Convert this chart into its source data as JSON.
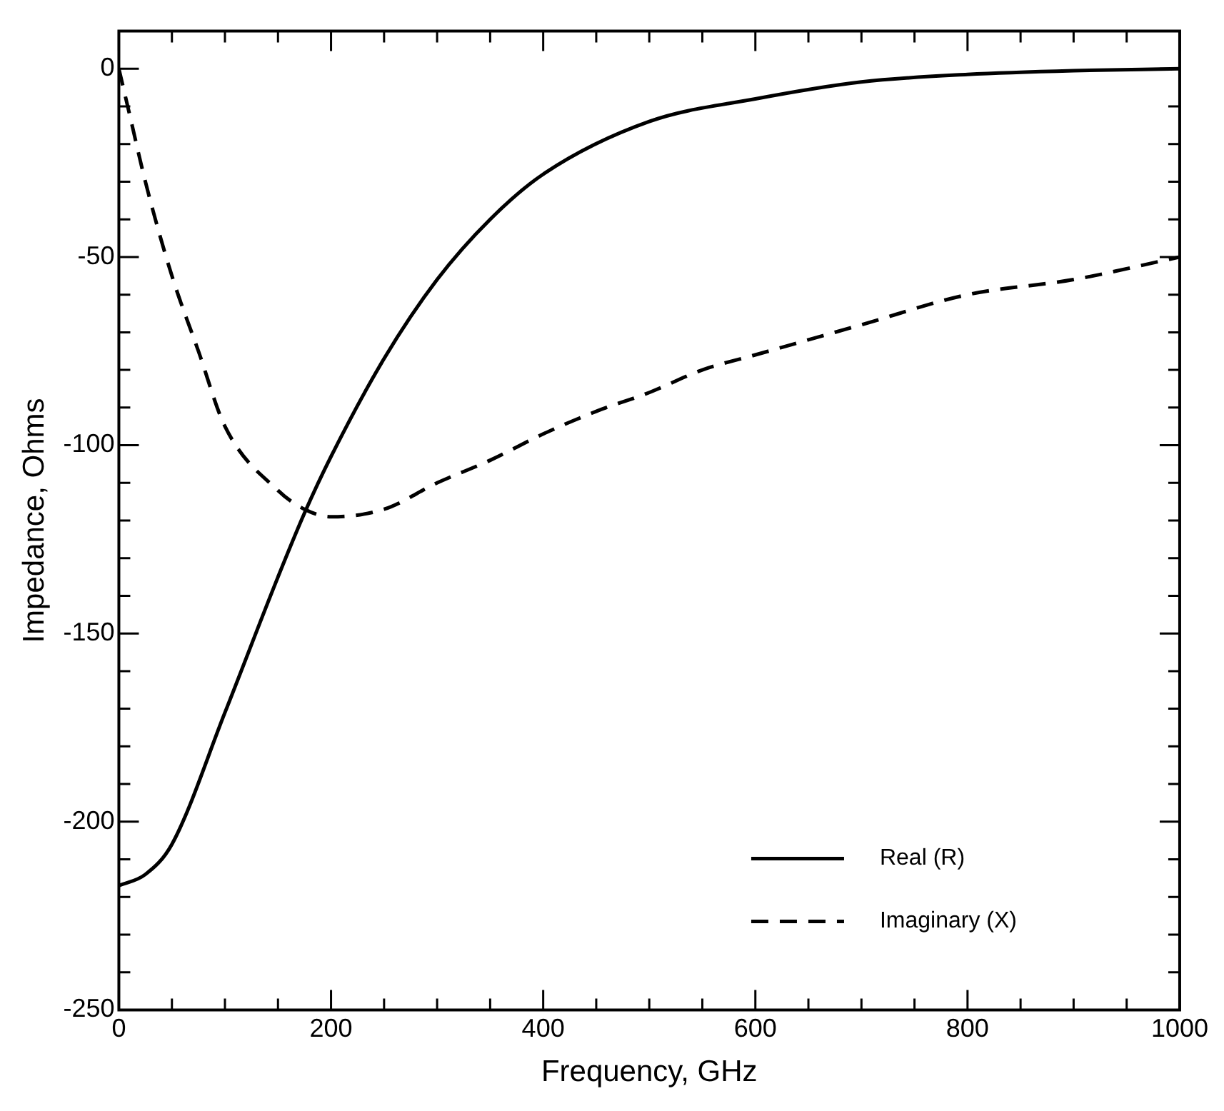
{
  "chart_data": {
    "type": "line",
    "xlabel": "Frequency, GHz",
    "ylabel": "Impedance, Ohms",
    "legend": "bottom right",
    "grid": false,
    "marker": "none",
    "xlim": [
      0,
      1000
    ],
    "ylim": [
      -250,
      10
    ],
    "xticks": [
      0,
      {
        "value": 50,
        "label": null
      },
      {
        "value": 100,
        "label": null
      },
      {
        "value": 150,
        "label": null
      },
      200,
      {
        "value": 250,
        "label": null
      },
      {
        "value": 300,
        "label": null
      },
      {
        "value": 350,
        "label": null
      },
      400,
      {
        "value": 450,
        "label": null
      },
      {
        "value": 500,
        "label": null
      },
      {
        "value": 550,
        "label": null
      },
      600,
      {
        "value": 650,
        "label": null
      },
      {
        "value": 700,
        "label": null
      },
      {
        "value": 750,
        "label": null
      },
      800,
      {
        "value": 850,
        "label": null
      },
      {
        "value": 900,
        "label": null
      },
      {
        "value": 950,
        "label": null
      },
      1000
    ],
    "yticks": [
      -250,
      {
        "value": -240,
        "label": null
      },
      {
        "value": -230,
        "label": null
      },
      {
        "value": -220,
        "label": null
      },
      {
        "value": -210,
        "label": null
      },
      -200,
      {
        "value": -190,
        "label": null
      },
      {
        "value": -180,
        "label": null
      },
      {
        "value": -170,
        "label": null
      },
      {
        "value": -160,
        "label": null
      },
      -150,
      {
        "value": -140,
        "label": null
      },
      {
        "value": -130,
        "label": null
      },
      {
        "value": -120,
        "label": null
      },
      {
        "value": -110,
        "label": null
      },
      -100,
      {
        "value": -90,
        "label": null
      },
      {
        "value": -80,
        "label": null
      },
      {
        "value": -70,
        "label": null
      },
      {
        "value": -60,
        "label": null
      },
      -50,
      {
        "value": -40,
        "label": null
      },
      {
        "value": -30,
        "label": null
      },
      {
        "value": -20,
        "label": null
      },
      {
        "value": -10,
        "label": null
      },
      0,
      {
        "value": 10,
        "label": null
      }
    ],
    "series": [
      {
        "name": "Real (R)",
        "color": "#000000",
        "line_style": "solid",
        "x": [
          0,
          25,
          50,
          100,
          150,
          175,
          200,
          250,
          300,
          350,
          400,
          500,
          600,
          700,
          800,
          900,
          1000
        ],
        "values": [
          -217,
          -214,
          -206,
          -171,
          -135,
          -118,
          -103,
          -77,
          -56,
          -40,
          -28,
          -14,
          -8,
          -3.5,
          -1.5,
          -0.5,
          0
        ]
      },
      {
        "name": "Imaginary (X)",
        "color": "#000000",
        "line_style": "dashed",
        "x": [
          0,
          10,
          25,
          50,
          75,
          100,
          150,
          175,
          200,
          250,
          300,
          350,
          400,
          450,
          500,
          550,
          600,
          700,
          800,
          900,
          1000
        ],
        "values": [
          0,
          -12,
          -30,
          -55,
          -75,
          -95,
          -112,
          -117,
          -119,
          -117,
          -110,
          -104,
          -97,
          -91,
          -86,
          -80,
          -76,
          -68,
          -60,
          -56,
          -50
        ]
      }
    ]
  }
}
